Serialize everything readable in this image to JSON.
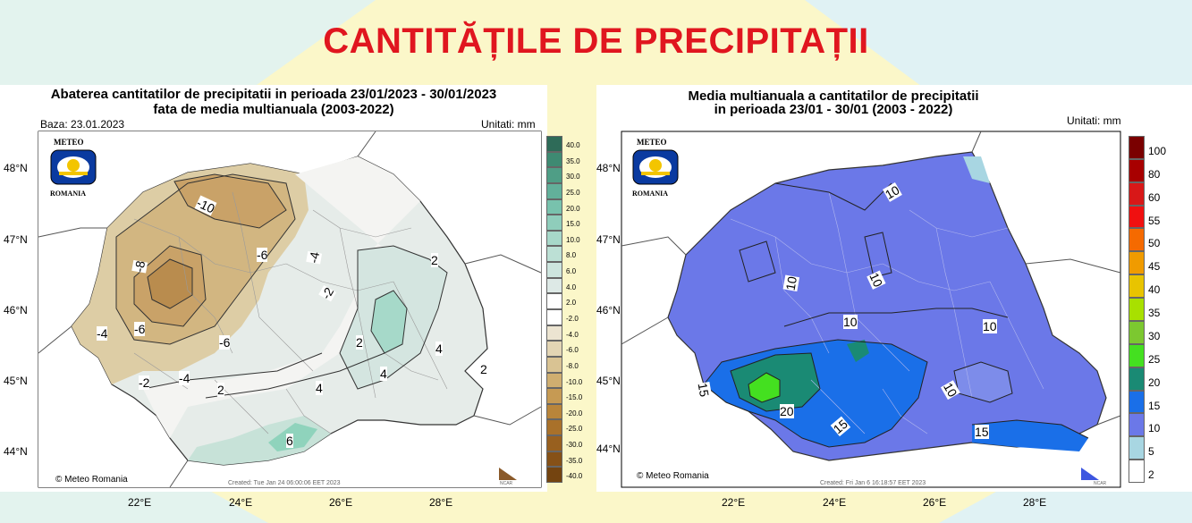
{
  "page_title": "CANTITĂȚILE DE PRECIPITAȚII",
  "left_map": {
    "title_line1": "Abaterea cantitatilor de precipitatii in perioada 23/01/2023 - 30/01/2023",
    "title_line2": "fata de media multianuala (2003-2022)",
    "base_date": "Baza: 23.01.2023",
    "units": "Unitati: mm",
    "logo_top": "METEO",
    "logo_bottom": "ROMANIA",
    "credit": "© Meteo Romania",
    "created": "Created: Tue Jan 24 06:00:06 EET 2023",
    "ncar": "NCAR",
    "lat_labels": [
      "48°N",
      "47°N",
      "46°N",
      "45°N",
      "44°N"
    ],
    "lon_labels": [
      "22°E",
      "24°E",
      "26°E",
      "28°E"
    ],
    "colorbar_labels": [
      "40.0",
      "35.0",
      "30.0",
      "25.0",
      "20.0",
      "15.0",
      "10.0",
      "8.0",
      "6.0",
      "4.0",
      "2.0",
      "-2.0",
      "-4.0",
      "-6.0",
      "-8.0",
      "-10.0",
      "-15.0",
      "-20.0",
      "-25.0",
      "-30.0",
      "-35.0",
      "-40.0"
    ],
    "colorbar_colors": [
      "#2e6b58",
      "#3e8a72",
      "#4f9e86",
      "#62b09a",
      "#78c2ad",
      "#8fcdbb",
      "#a7d8c9",
      "#bce0d5",
      "#cde5de",
      "#dde9e6",
      "#ffffff",
      "#ffffff",
      "#ece4d1",
      "#e3d5b4",
      "#d9c393",
      "#cfae70",
      "#c69a53",
      "#b9853a",
      "#a9712a",
      "#98601f",
      "#865117",
      "#744410"
    ],
    "contour_labels": [
      "-10",
      "-8",
      "-6",
      "-4",
      "-4",
      "-6",
      "-6",
      "-2",
      "-4",
      "-2",
      "-4",
      "2",
      "4",
      "2",
      "4",
      "2",
      "4",
      "2",
      "6"
    ]
  },
  "right_map": {
    "title_line1": "Media multianuala a cantitatilor de precipitatii",
    "title_line2": "in perioada 23/01 - 30/01 (2003 - 2022)",
    "units": "Unitati: mm",
    "logo_top": "METEO",
    "logo_bottom": "ROMANIA",
    "credit": "© Meteo Romania",
    "created": "Created: Fri Jan  6 16:18:57 EET 2023",
    "ncar": "NCAR",
    "lat_labels": [
      "48°N",
      "47°N",
      "46°N",
      "45°N",
      "44°N"
    ],
    "lon_labels": [
      "22°E",
      "24°E",
      "26°E",
      "28°E"
    ],
    "colorbar_labels": [
      "100",
      "80",
      "60",
      "55",
      "50",
      "45",
      "40",
      "35",
      "30",
      "25",
      "20",
      "15",
      "10",
      "5",
      "2"
    ],
    "colorbar_colors": [
      "#7a0000",
      "#a80000",
      "#d81818",
      "#f01010",
      "#f56a00",
      "#f09b00",
      "#e8c400",
      "#a8e000",
      "#7cc830",
      "#44e020",
      "#1a8a74",
      "#1a6fe8",
      "#6b78e8",
      "#a8d6e2",
      "#ffffff"
    ],
    "contour_labels": [
      "10",
      "10",
      "10",
      "10",
      "10",
      "10",
      "15",
      "20",
      "15",
      "10",
      "15"
    ]
  }
}
